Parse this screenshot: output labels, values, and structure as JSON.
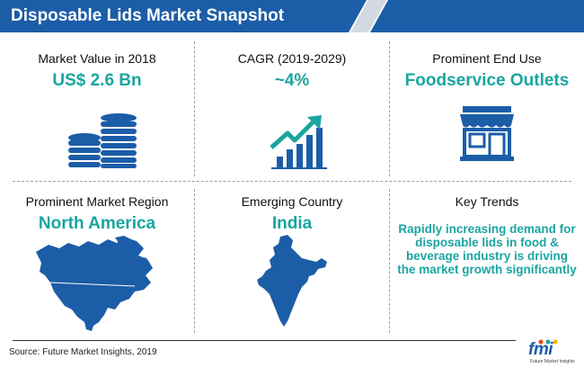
{
  "header": {
    "title": "Disposable Lids Market Snapshot"
  },
  "cards": [
    {
      "label": "Market Value in 2018",
      "value": "US$ 2.6 Bn",
      "icon": "coin-stack-icon"
    },
    {
      "label": "CAGR (2019-2029)",
      "value": "~4%",
      "icon": "growth-chart-icon"
    },
    {
      "label": "Prominent End Use",
      "value": "Foodservice Outlets",
      "icon": "storefront-icon"
    },
    {
      "label": "Prominent Market Region",
      "value": "North America",
      "icon": "north-america-map-icon"
    },
    {
      "label": "Emerging Country",
      "value": "India",
      "icon": "india-map-icon"
    },
    {
      "label": "Key Trends",
      "value": "Rapidly increasing demand for disposable lids in food & beverage industry is driving the market growth significantly",
      "icon": ""
    }
  ],
  "footer": {
    "source": "Source: Future Market Insights, 2019",
    "logo": "fmi",
    "logo_tagline": "Future Market Insights"
  },
  "colors": {
    "header_blue": "#1c5da8",
    "accent_teal": "#1aa5a0",
    "icon_blue": "#1c5da8"
  }
}
